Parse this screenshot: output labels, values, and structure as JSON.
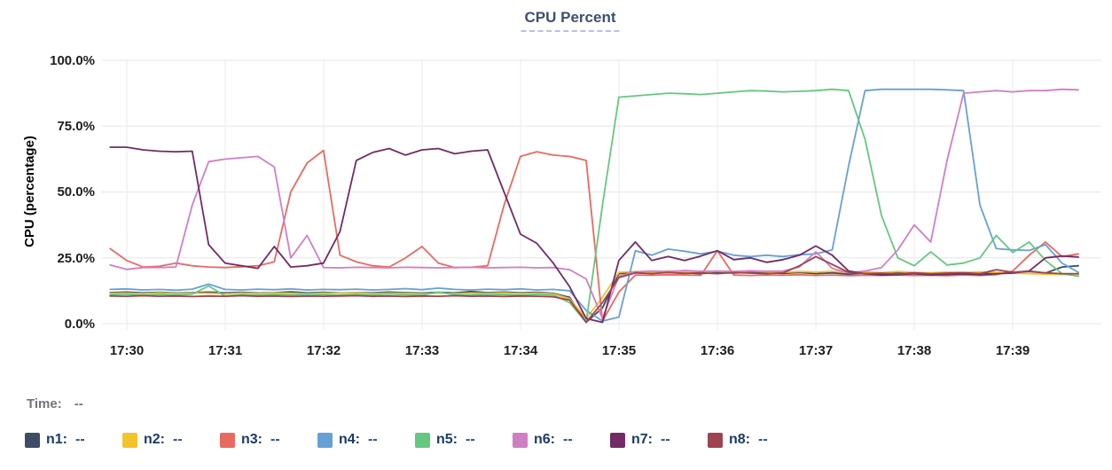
{
  "legend": {
    "time_label": "Time:",
    "time_value": "--",
    "items": [
      {
        "label": "n1:",
        "value": "--",
        "color": "#3f4c65"
      },
      {
        "label": "n2:",
        "value": "--",
        "color": "#f3c32c"
      },
      {
        "label": "n3:",
        "value": "--",
        "color": "#e96a60"
      },
      {
        "label": "n4:",
        "value": "--",
        "color": "#66a1d6"
      },
      {
        "label": "n5:",
        "value": "--",
        "color": "#64c880"
      },
      {
        "label": "n6:",
        "value": "--",
        "color": "#d07fc4"
      },
      {
        "label": "n7:",
        "value": "--",
        "color": "#722b64"
      },
      {
        "label": "n8:",
        "value": "--",
        "color": "#9e4352"
      }
    ]
  },
  "chart_data": {
    "type": "line",
    "title": "CPU Percent",
    "ylabel": "CPU (percentage)",
    "xlabel": "",
    "ylim": [
      0,
      100
    ],
    "grid": true,
    "legend_position": "bottom",
    "y_ticks": [
      "100.0%",
      "75.0%",
      "50.0%",
      "25.0%",
      "0.0%"
    ],
    "x_ticks": [
      "17:30",
      "17:31",
      "17:32",
      "17:33",
      "17:34",
      "17:35",
      "17:36",
      "17:37",
      "17:38",
      "17:39"
    ],
    "x_minutes": [
      -0.167,
      0,
      0.167,
      0.333,
      0.5,
      0.667,
      0.833,
      1,
      1.167,
      1.333,
      1.5,
      1.667,
      1.833,
      2,
      2.167,
      2.333,
      2.5,
      2.667,
      2.833,
      3,
      3.167,
      3.333,
      3.5,
      3.667,
      3.833,
      4,
      4.167,
      4.333,
      4.5,
      4.667,
      4.833,
      5,
      5.167,
      5.333,
      5.5,
      5.667,
      5.833,
      6,
      6.167,
      6.333,
      6.5,
      6.667,
      6.833,
      7,
      7.167,
      7.333,
      7.5,
      7.667,
      7.833,
      8,
      8.167,
      8.333,
      8.5,
      8.667,
      8.833,
      9,
      9.167,
      9.333,
      9.5,
      9.667
    ],
    "series": [
      {
        "name": "n1",
        "color": "#3f4c65",
        "values": [
          11.8,
          12.0,
          11.7,
          11.9,
          11.6,
          11.8,
          12.0,
          11.7,
          11.9,
          11.6,
          11.8,
          12.1,
          11.7,
          11.9,
          11.6,
          11.8,
          11.7,
          12.0,
          11.8,
          11.6,
          11.9,
          11.7,
          12.2,
          11.8,
          12.0,
          11.7,
          11.9,
          11.5,
          10.0,
          0.5,
          6.0,
          19.0,
          19.5,
          19.2,
          19.6,
          19.3,
          19.0,
          19.5,
          19.2,
          19.6,
          19.3,
          19.1,
          19.4,
          19.0,
          19.3,
          18.8,
          19.2,
          18.9,
          19.3,
          19.0,
          18.8,
          19.2,
          18.9,
          19.4,
          19.1,
          19.5,
          20.0,
          19.2,
          21.5,
          22.0
        ]
      },
      {
        "name": "n2",
        "color": "#f3c32c",
        "values": [
          11.5,
          11.6,
          11.4,
          11.7,
          11.4,
          11.6,
          11.5,
          11.3,
          11.6,
          11.4,
          11.7,
          11.5,
          11.4,
          11.6,
          11.5,
          11.7,
          11.4,
          11.6,
          11.5,
          11.3,
          11.6,
          11.4,
          11.6,
          11.5,
          11.7,
          11.4,
          11.6,
          11.3,
          9.5,
          2.0,
          10.0,
          19.5,
          19.8,
          19.6,
          20.0,
          19.7,
          19.5,
          19.9,
          19.6,
          20.0,
          19.7,
          19.5,
          19.8,
          19.6,
          19.9,
          19.5,
          19.7,
          19.4,
          19.8,
          19.5,
          19.3,
          19.6,
          19.4,
          19.7,
          19.5,
          19.2,
          19.0,
          18.8,
          18.7,
          18.7
        ]
      },
      {
        "name": "n3",
        "color": "#e96a60",
        "values": [
          28.5,
          24.0,
          21.5,
          21.8,
          23.0,
          22.0,
          21.5,
          21.3,
          21.6,
          22.0,
          23.5,
          50.0,
          61.0,
          65.8,
          26.0,
          23.5,
          22.0,
          21.5,
          25.0,
          29.3,
          23.0,
          21.3,
          21.4,
          22.0,
          45.0,
          63.5,
          65.3,
          64.0,
          63.5,
          62.0,
          1.0,
          12.0,
          18.5,
          18.4,
          18.6,
          18.5,
          18.4,
          27.7,
          18.5,
          18.3,
          18.5,
          18.4,
          18.6,
          18.3,
          18.5,
          18.2,
          18.4,
          18.3,
          18.5,
          18.3,
          18.4,
          18.2,
          18.5,
          18.3,
          18.6,
          20.0,
          26.0,
          31.0,
          25.5,
          26.5
        ]
      },
      {
        "name": "n4",
        "color": "#66a1d6",
        "values": [
          13.0,
          13.2,
          12.8,
          13.0,
          12.7,
          13.1,
          15.0,
          13.0,
          12.8,
          13.1,
          12.9,
          13.2,
          12.8,
          13.0,
          12.9,
          13.1,
          12.8,
          13.0,
          13.3,
          12.9,
          13.5,
          13.0,
          12.8,
          13.1,
          12.9,
          13.2,
          12.8,
          13.0,
          12.5,
          5.0,
          1.0,
          2.5,
          27.7,
          26.0,
          28.3,
          27.5,
          26.5,
          27.5,
          26.0,
          25.5,
          26.0,
          25.5,
          26.2,
          26.5,
          28.0,
          60.0,
          88.5,
          89.0,
          89.0,
          89.0,
          89.0,
          88.8,
          88.5,
          45.0,
          28.5,
          28.0,
          27.8,
          30.0,
          23.0,
          19.5
        ]
      },
      {
        "name": "n5",
        "color": "#64c880",
        "values": [
          11.0,
          11.2,
          10.8,
          11.1,
          10.9,
          11.2,
          14.3,
          10.5,
          11.0,
          10.8,
          11.1,
          10.9,
          11.2,
          11.0,
          10.8,
          11.1,
          10.9,
          11.3,
          11.0,
          10.8,
          12.0,
          11.0,
          10.9,
          11.2,
          11.0,
          10.8,
          11.1,
          10.9,
          8.0,
          0.5,
          45.0,
          86.0,
          86.5,
          87.0,
          87.5,
          87.3,
          87.0,
          87.5,
          88.0,
          88.5,
          88.3,
          88.0,
          88.2,
          88.5,
          89.0,
          88.5,
          70.0,
          41.0,
          25.0,
          22.0,
          27.3,
          22.3,
          23.0,
          25.0,
          33.5,
          27.0,
          31.0,
          24.0,
          19.0,
          18.0
        ]
      },
      {
        "name": "n6",
        "color": "#d07fc4",
        "values": [
          22.3,
          20.6,
          21.3,
          21.3,
          21.5,
          45.0,
          61.5,
          62.5,
          63.0,
          63.5,
          59.5,
          25.0,
          33.5,
          21.3,
          21.2,
          21.4,
          21.3,
          21.2,
          21.4,
          21.3,
          21.2,
          21.3,
          21.4,
          21.2,
          21.3,
          21.4,
          21.2,
          21.3,
          20.5,
          17.0,
          2.0,
          18.0,
          19.7,
          20.0,
          19.8,
          20.2,
          19.9,
          20.0,
          19.8,
          20.1,
          19.9,
          20.0,
          21.5,
          27.3,
          21.0,
          19.3,
          20.0,
          21.3,
          28.0,
          37.5,
          31.0,
          62.0,
          87.5,
          88.0,
          88.5,
          88.0,
          88.5,
          88.5,
          89.0,
          88.8
        ]
      },
      {
        "name": "n7",
        "color": "#722b64",
        "values": [
          67.0,
          67.0,
          66.0,
          65.5,
          65.3,
          65.5,
          30.0,
          23.0,
          22.0,
          21.0,
          29.3,
          21.5,
          22.0,
          23.0,
          35.0,
          62.0,
          65.0,
          66.5,
          64.0,
          66.0,
          66.5,
          64.5,
          65.5,
          66.0,
          50.0,
          34.0,
          30.5,
          23.0,
          14.0,
          2.0,
          0.5,
          24.0,
          31.0,
          24.0,
          25.5,
          24.0,
          25.7,
          27.7,
          24.3,
          25.0,
          23.3,
          24.3,
          26.0,
          29.5,
          26.0,
          20.0,
          19.0,
          18.5,
          18.6,
          19.0,
          18.5,
          18.7,
          18.9,
          18.6,
          19.0,
          19.2,
          20.0,
          25.0,
          25.7,
          25.3
        ]
      },
      {
        "name": "n8",
        "color": "#9e4352",
        "values": [
          10.5,
          10.4,
          10.6,
          10.4,
          10.5,
          10.3,
          10.5,
          10.4,
          10.6,
          10.4,
          10.5,
          10.3,
          10.5,
          10.4,
          10.5,
          10.6,
          10.4,
          10.5,
          10.3,
          10.5,
          10.4,
          10.6,
          10.4,
          10.5,
          10.3,
          10.5,
          10.4,
          10.2,
          9.0,
          0.5,
          8.0,
          17.5,
          19.3,
          19.0,
          19.4,
          19.1,
          19.3,
          19.0,
          19.4,
          19.2,
          19.0,
          19.3,
          22.0,
          25.5,
          22.5,
          19.5,
          19.0,
          19.2,
          18.9,
          19.3,
          19.0,
          19.2,
          19.4,
          19.0,
          20.5,
          19.5,
          19.8,
          19.3,
          19.0,
          19.0
        ]
      }
    ]
  }
}
